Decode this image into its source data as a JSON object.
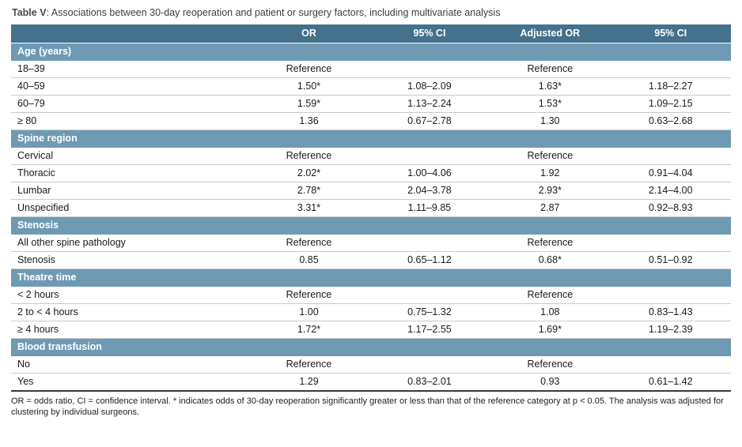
{
  "title": {
    "label": "Table V",
    "text": ": Associations between 30-day reoperation and patient or surgery factors, including multivariate analysis"
  },
  "colors": {
    "header_bg": "#44718c",
    "section_bg": "#6e9ab3",
    "row_border": "#c9c9c9",
    "bottom_rule": "#3a3a3a"
  },
  "table": {
    "columns": [
      "",
      "OR",
      "95% CI",
      "Adjusted OR",
      "95% CI"
    ],
    "sections": [
      {
        "name": "Age (years)",
        "rows": [
          [
            "18–39",
            "Reference",
            "",
            "Reference",
            ""
          ],
          [
            "40–59",
            "1.50*",
            "1.08–2.09",
            "1.63*",
            "1.18–2.27"
          ],
          [
            "60–79",
            "1.59*",
            "1.13–2.24",
            "1.53*",
            "1.09–2.15"
          ],
          [
            "≥ 80",
            "1.36",
            "0.67–2.78",
            "1.30",
            "0.63–2.68"
          ]
        ]
      },
      {
        "name": "Spine region",
        "rows": [
          [
            "Cervical",
            "Reference",
            "",
            "Reference",
            ""
          ],
          [
            "Thoracic",
            "2.02*",
            "1.00–4.06",
            "1.92",
            "0.91–4.04"
          ],
          [
            "Lumbar",
            "2.78*",
            "2.04–3.78",
            "2.93*",
            "2.14–4.00"
          ],
          [
            "Unspecified",
            "3.31*",
            "1.11–9.85",
            "2.87",
            "0.92–8.93"
          ]
        ]
      },
      {
        "name": "Stenosis",
        "rows": [
          [
            "All other spine pathology",
            "Reference",
            "",
            "Reference",
            ""
          ],
          [
            "Stenosis",
            "0.85",
            "0.65–1.12",
            "0.68*",
            "0.51–0.92"
          ]
        ]
      },
      {
        "name": "Theatre time",
        "rows": [
          [
            "< 2 hours",
            "Reference",
            "",
            "Reference",
            ""
          ],
          [
            "2 to < 4 hours",
            "1.00",
            "0.75–1.32",
            "1.08",
            "0.83–1.43"
          ],
          [
            "≥ 4 hours",
            "1.72*",
            "1.17–2.55",
            "1.69*",
            "1.19–2.39"
          ]
        ]
      },
      {
        "name": "Blood transfusion",
        "rows": [
          [
            "No",
            "Reference",
            "",
            "Reference",
            ""
          ],
          [
            "Yes",
            "1.29",
            "0.83–2.01",
            "0.93",
            "0.61–1.42"
          ]
        ]
      }
    ]
  },
  "footnote": "OR = odds ratio, CI = confidence interval. * indicates odds of 30-day reoperation significantly greater or less than that of the reference category at p < 0.05. The analysis was adjusted for clustering by individual surgeons."
}
